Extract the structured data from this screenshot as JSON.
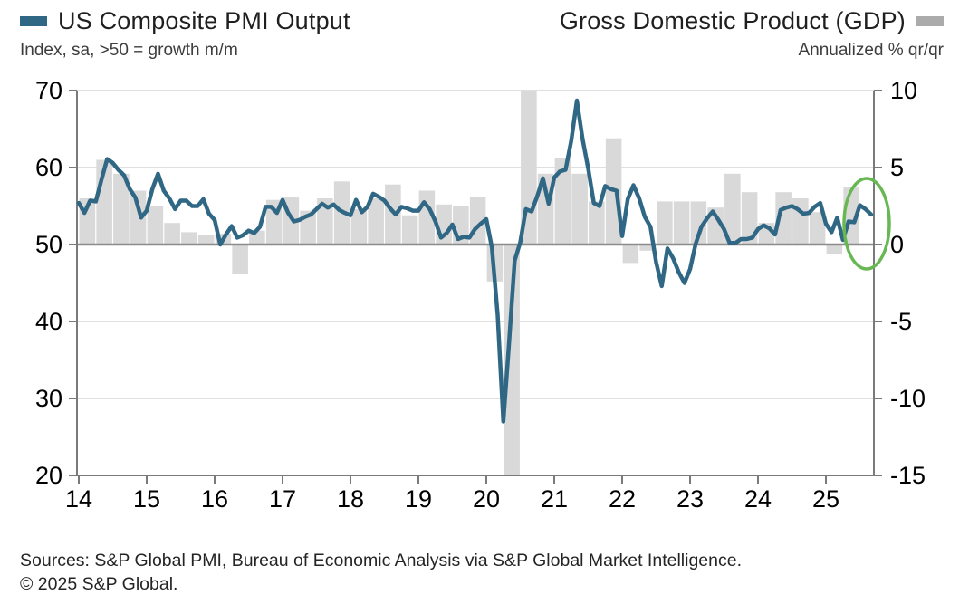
{
  "header": {
    "legend_left": {
      "label": "US Composite PMI Output",
      "color": "#2f6784"
    },
    "subtitle_left": "Index, sa, >50 = growth m/m",
    "legend_right": {
      "label": "Gross Domestic Product (GDP)",
      "color": "#ababab"
    },
    "subtitle_right": "Annualized % qr/qr"
  },
  "footer": {
    "sources": "Sources: S&P Global PMI, Bureau of Economic Analysis via S&P Global Market Intelligence.",
    "copyright": "© 2025 S&P Global."
  },
  "chart_data": {
    "type": "line+bar",
    "legend": [
      "US Composite PMI Output",
      "Gross Domestic Product (GDP)"
    ],
    "title_left": "US Composite PMI Output",
    "subtitle_left": "Index, sa, >50 = growth m/m",
    "title_right": "Gross Domestic Product (GDP)",
    "subtitle_right": "Annualized % qr/qr",
    "x_axis": {
      "start_year": 2014,
      "tick_labels": [
        "14",
        "15",
        "16",
        "17",
        "18",
        "19",
        "20",
        "21",
        "22",
        "23",
        "24",
        "25"
      ],
      "grid": false
    },
    "left_axis": {
      "ticks": [
        70,
        60,
        50,
        40,
        30,
        20
      ],
      "range": [
        20,
        70
      ],
      "grid": true
    },
    "right_axis": {
      "ticks": [
        10,
        5,
        0,
        -5,
        -10,
        -15
      ],
      "range": [
        -15,
        10
      ]
    },
    "series": [
      {
        "name": "US Composite PMI Output",
        "type": "line",
        "axis": "left",
        "color": "#2f6784",
        "start": 2014.0,
        "interval_months": 1,
        "values": [
          55.4,
          54.1,
          55.7,
          55.6,
          58.4,
          61.1,
          60.6,
          59.7,
          59.0,
          57.2,
          56.1,
          53.5,
          54.4,
          57.2,
          59.2,
          57.0,
          56.0,
          54.6,
          55.7,
          55.7,
          55.0,
          55.0,
          55.9,
          54.0,
          53.2,
          50.0,
          51.3,
          52.4,
          50.9,
          51.2,
          51.8,
          51.5,
          52.3,
          54.9,
          54.9,
          54.1,
          55.8,
          54.1,
          53.0,
          53.2,
          53.6,
          53.9,
          54.6,
          55.3,
          54.8,
          55.2,
          54.5,
          54.1,
          53.8,
          55.8,
          54.2,
          54.9,
          56.6,
          56.2,
          55.7,
          54.7,
          53.9,
          54.9,
          54.7,
          54.4,
          54.4,
          55.5,
          54.6,
          53.0,
          50.9,
          51.5,
          52.6,
          50.7,
          51.0,
          50.9,
          52.0,
          52.7,
          53.3,
          49.6,
          40.9,
          27.0,
          37.0,
          47.9,
          50.3,
          54.6,
          54.3,
          56.3,
          58.6,
          55.3,
          58.7,
          59.5,
          59.7,
          63.5,
          68.7,
          63.7,
          59.9,
          55.4,
          55.0,
          57.6,
          57.2,
          57.0,
          51.1,
          55.9,
          57.7,
          56.0,
          53.6,
          52.3,
          47.7,
          44.6,
          49.5,
          48.2,
          46.4,
          45.0,
          46.8,
          50.1,
          52.3,
          53.4,
          54.3,
          53.2,
          52.0,
          50.2,
          50.2,
          50.7,
          50.7,
          50.9,
          52.0,
          52.5,
          52.1,
          51.3,
          54.5,
          54.8,
          55.0,
          54.6,
          54.0,
          54.1,
          54.9,
          55.4,
          52.7,
          51.6,
          53.5,
          50.6,
          53.0,
          52.9,
          55.1,
          54.6,
          53.9
        ]
      },
      {
        "name": "Gross Domestic Product (GDP)",
        "type": "bar",
        "axis": "right",
        "color": "#d9d9d9",
        "clip_to_range": true,
        "quarter_labels": [
          "2014Q1",
          "2014Q2",
          "2014Q3",
          "2014Q4",
          "2015Q1",
          "2015Q2",
          "2015Q3",
          "2015Q4",
          "2016Q1",
          "2016Q2",
          "2016Q3",
          "2016Q4",
          "2017Q1",
          "2017Q2",
          "2017Q3",
          "2017Q4",
          "2018Q1",
          "2018Q2",
          "2018Q3",
          "2018Q4",
          "2019Q1",
          "2019Q2",
          "2019Q3",
          "2019Q4",
          "2020Q1",
          "2020Q2",
          "2020Q3",
          "2020Q4",
          "2021Q1",
          "2021Q2",
          "2021Q3",
          "2021Q4",
          "2022Q1",
          "2022Q2",
          "2022Q3",
          "2022Q4",
          "2023Q1",
          "2023Q2",
          "2023Q3",
          "2023Q4",
          "2024Q1",
          "2024Q2",
          "2024Q3",
          "2024Q4",
          "2025Q1",
          "2025Q2"
        ],
        "values": [
          3.0,
          5.5,
          4.6,
          3.5,
          2.5,
          1.4,
          0.8,
          0.6,
          0.7,
          -1.9,
          0.9,
          2.9,
          3.1,
          2.2,
          3.0,
          4.1,
          2.3,
          3.0,
          3.9,
          1.9,
          3.5,
          2.6,
          2.5,
          3.1,
          -2.4,
          -28.0,
          34.8,
          4.6,
          5.6,
          4.6,
          2.8,
          6.9,
          -1.2,
          -0.4,
          2.8,
          2.8,
          2.8,
          2.4,
          4.6,
          3.4,
          1.4,
          3.4,
          3.0,
          2.1,
          -0.6,
          3.7
        ]
      }
    ],
    "annotation": {
      "shape": "ellipse",
      "color": "#67b852"
    },
    "colors": {
      "gridline": "#cccccc",
      "zero_line": "#8c8c8c",
      "axis": "#7a7a7a",
      "tick_label": "#000000"
    }
  }
}
